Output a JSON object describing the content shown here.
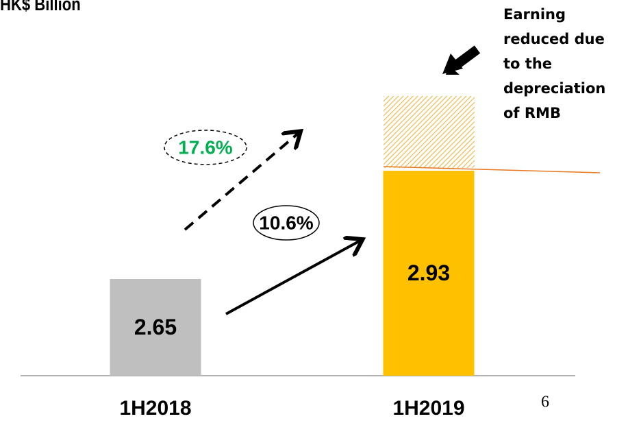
{
  "chart_data": {
    "type": "bar",
    "title": "HK$ Billion",
    "categories": [
      "1H2018",
      "1H2019"
    ],
    "values": [
      2.65,
      2.93
    ],
    "colors": [
      "#bfbfbf",
      "#ffc000"
    ],
    "ylim": [
      2.4,
      3.15
    ],
    "annotations": {
      "note": [
        "Earning",
        "reduced due",
        "to the",
        "depreciation",
        "of RMB"
      ],
      "growth_with_rmb": "17.6%",
      "growth_reported": "10.6%",
      "page": "6"
    }
  }
}
